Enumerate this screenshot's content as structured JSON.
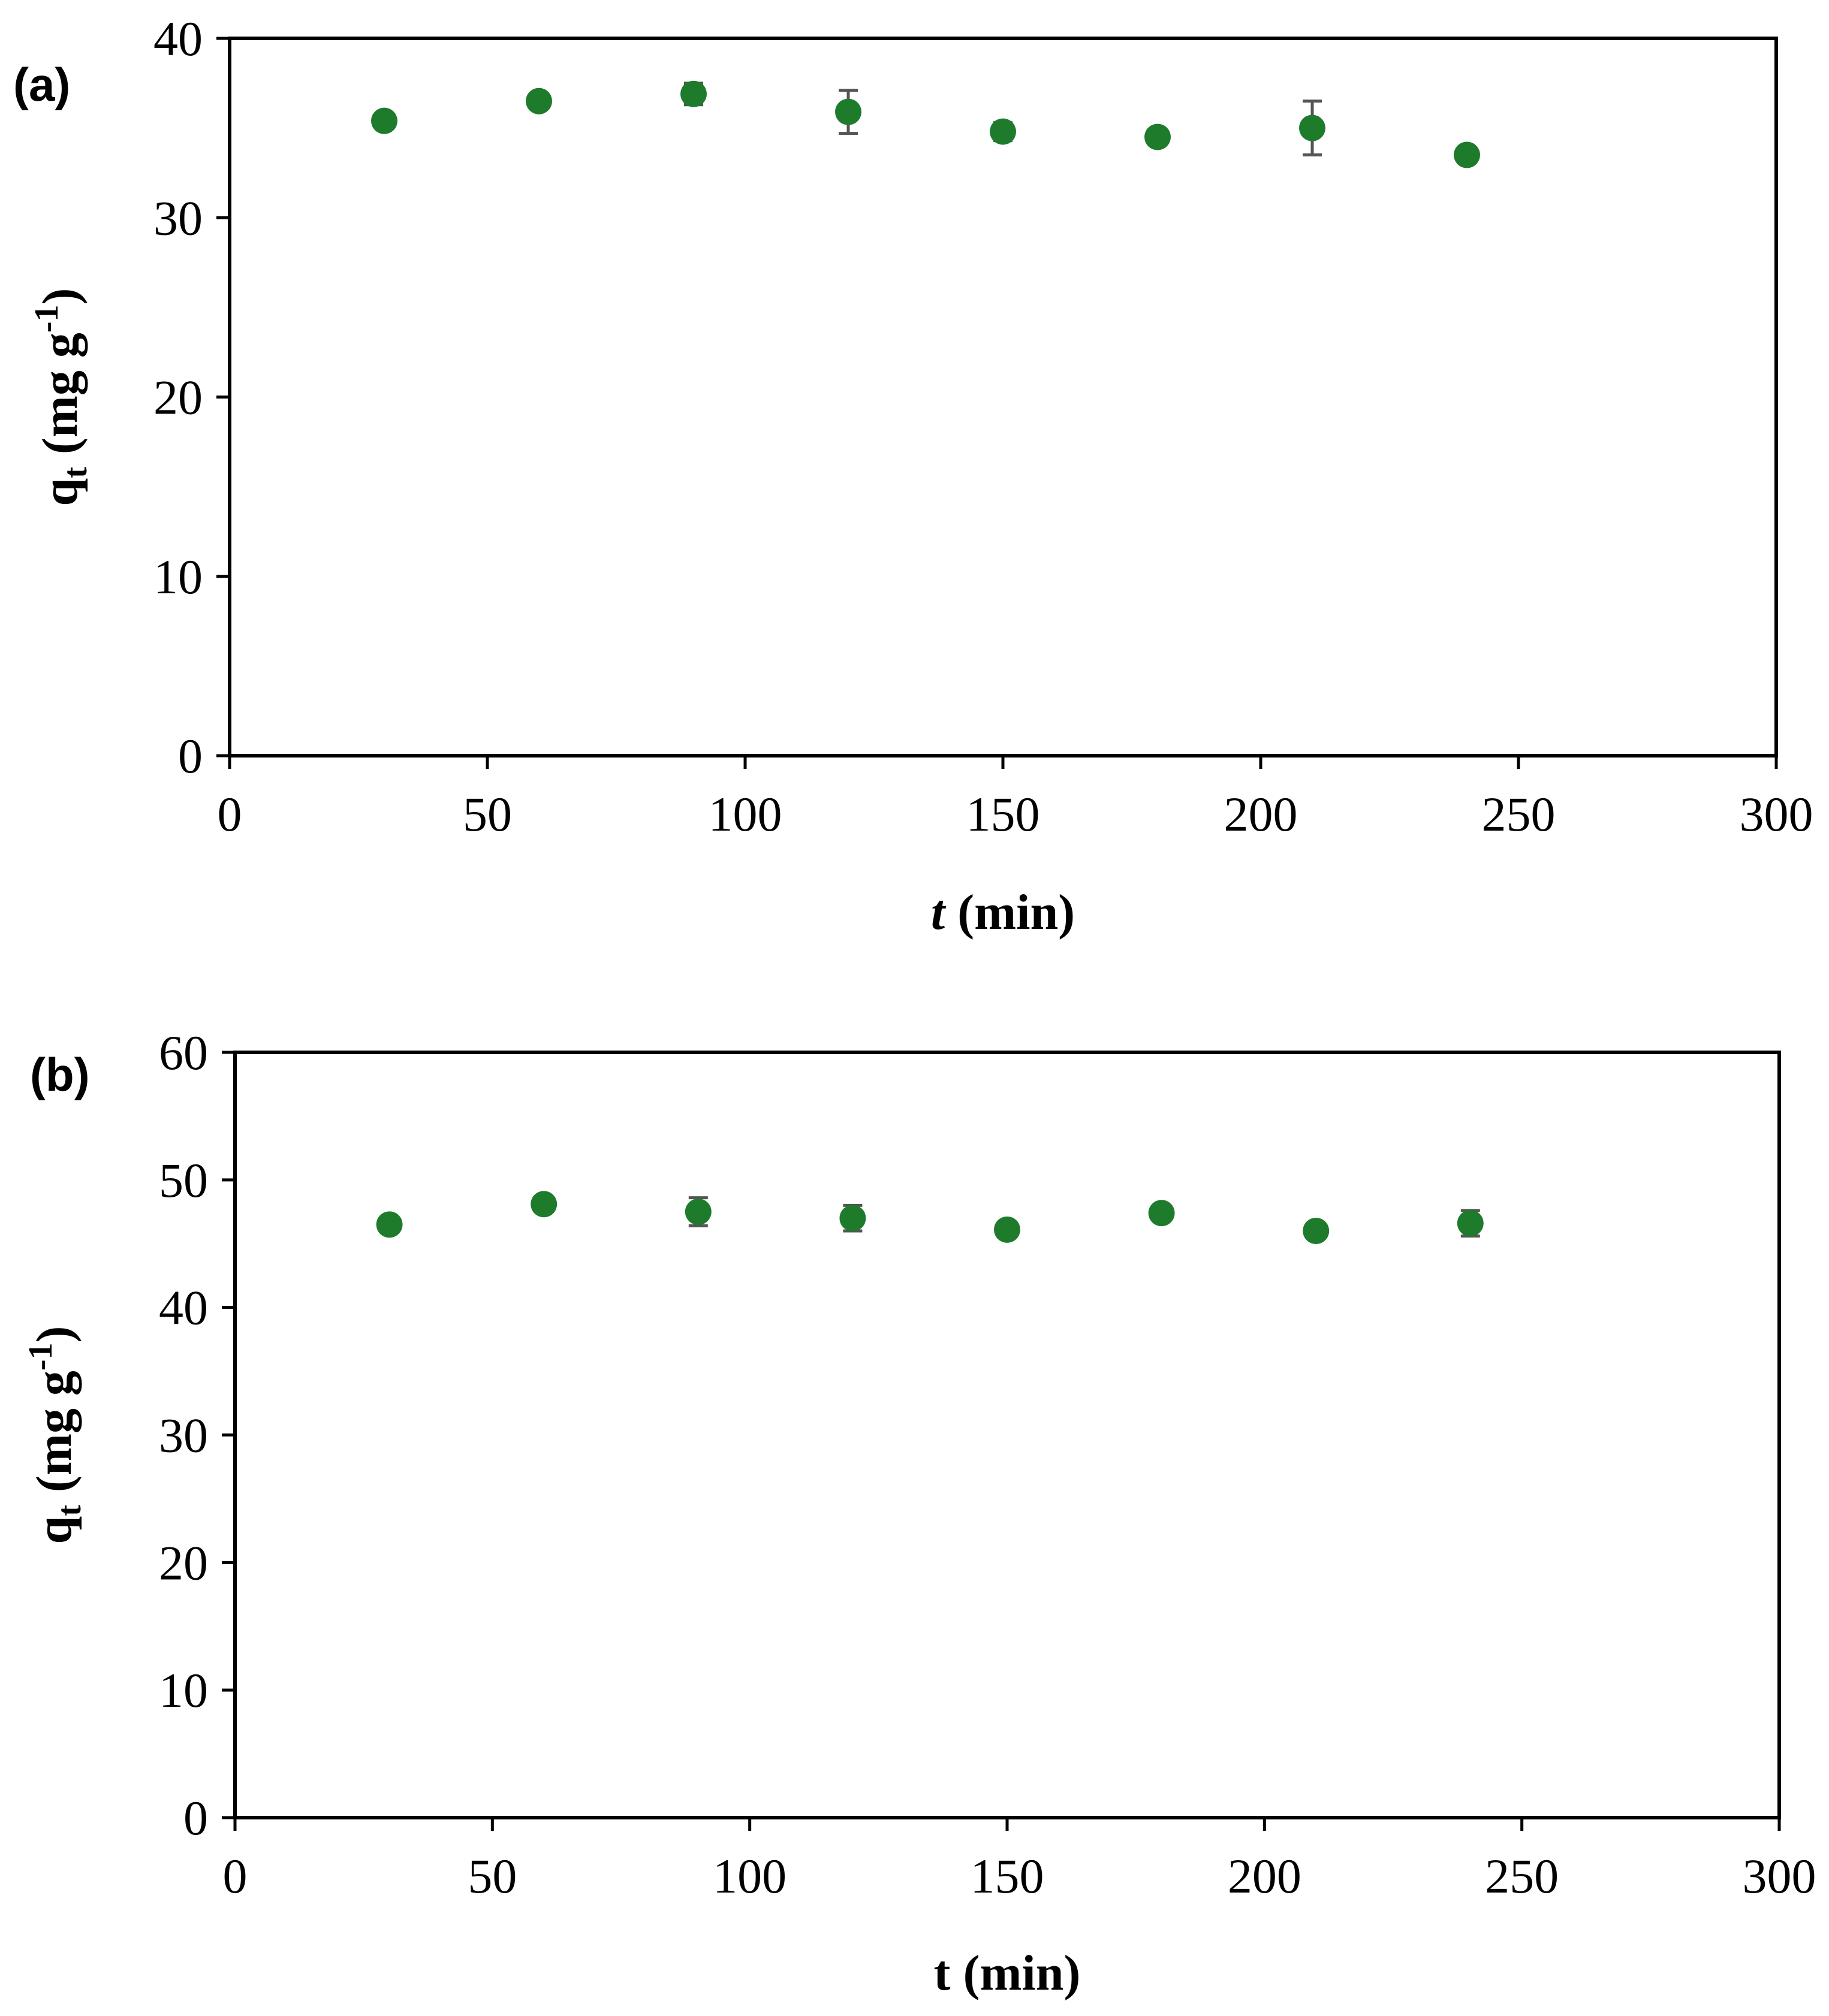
{
  "chart_data": [
    {
      "type": "scatter",
      "panel_label": "(a)",
      "xlabel_italic": "t",
      "xlabel_rest": " (min)",
      "ylabel_main": "q",
      "ylabel_sub": "t",
      "ylabel_unit_open": " (mg g",
      "ylabel_sup": "-1",
      "ylabel_unit_close": ")",
      "xlim": [
        0,
        300
      ],
      "ylim": [
        0,
        40
      ],
      "xticks": [
        "0",
        "50",
        "100",
        "150",
        "200",
        "250",
        "300"
      ],
      "yticks": [
        "0",
        "10",
        "20",
        "30",
        "40"
      ],
      "grid": false,
      "marker_color": "#1e7b2c",
      "error_color": "#555555",
      "points": [
        {
          "x": 30,
          "y": 35.4,
          "err": 0.2
        },
        {
          "x": 60,
          "y": 36.5,
          "err": 0.2
        },
        {
          "x": 90,
          "y": 36.9,
          "err": 0.6
        },
        {
          "x": 120,
          "y": 35.9,
          "err": 1.2
        },
        {
          "x": 150,
          "y": 34.8,
          "err": 0.5
        },
        {
          "x": 180,
          "y": 34.5,
          "err": 0.2
        },
        {
          "x": 210,
          "y": 35.0,
          "err": 1.5
        },
        {
          "x": 240,
          "y": 33.5,
          "err": 0.2
        }
      ]
    },
    {
      "type": "scatter",
      "panel_label": "(b)",
      "xlabel_italic": "",
      "xlabel_rest": "t (min)",
      "ylabel_main": "q",
      "ylabel_sub": "t",
      "ylabel_unit_open": " (mg g",
      "ylabel_sup": "-1",
      "ylabel_unit_close": ")",
      "xlim": [
        0,
        300
      ],
      "ylim": [
        0,
        60
      ],
      "xticks": [
        "0",
        "50",
        "100",
        "150",
        "200",
        "250",
        "300"
      ],
      "yticks": [
        "0",
        "10",
        "20",
        "30",
        "40",
        "50",
        "60"
      ],
      "grid": false,
      "marker_color": "#1e7b2c",
      "error_color": "#555555",
      "points": [
        {
          "x": 30,
          "y": 46.5,
          "err": 0.3
        },
        {
          "x": 60,
          "y": 48.1,
          "err": 0.3
        },
        {
          "x": 90,
          "y": 47.5,
          "err": 1.1
        },
        {
          "x": 120,
          "y": 47.0,
          "err": 1.0
        },
        {
          "x": 150,
          "y": 46.1,
          "err": 0.3
        },
        {
          "x": 180,
          "y": 47.4,
          "err": 0.3
        },
        {
          "x": 210,
          "y": 46.0,
          "err": 0.3
        },
        {
          "x": 240,
          "y": 46.6,
          "err": 1.0
        }
      ]
    }
  ]
}
